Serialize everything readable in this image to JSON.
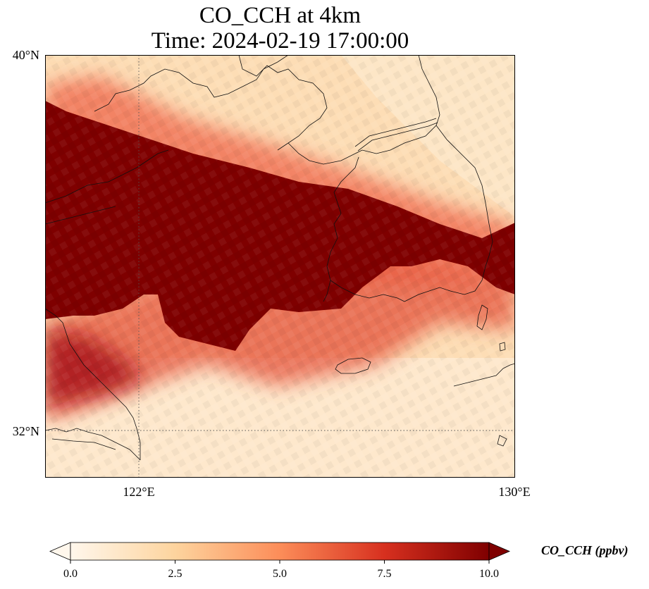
{
  "title": {
    "line1": "CO_CCH at 4km",
    "line2": "Time: 2024-02-19 17:00:00"
  },
  "map": {
    "variable": "CO_CCH",
    "level": "4km",
    "lat_range": [
      31,
      40
    ],
    "lon_range": [
      120,
      130
    ],
    "lat_ticks": [
      {
        "value": 40,
        "label": "40°N"
      },
      {
        "value": 32,
        "label": "32°N"
      }
    ],
    "lon_ticks": [
      {
        "value": 122,
        "label": "122°E"
      },
      {
        "value": 130,
        "label": "130°E"
      }
    ],
    "gridlines": "dotted",
    "plume_description_values": {
      "max_concentration_ppbv": 10,
      "background_ppbv": 2
    }
  },
  "colorbar": {
    "cmap": "OrRd",
    "min": 0,
    "max": 10,
    "extend": "both",
    "ticks": [
      "0.0",
      "2.5",
      "5.0",
      "7.5",
      "10.0"
    ],
    "tick_values": [
      0,
      2.5,
      5,
      7.5,
      10
    ],
    "label": "CO_CCH (ppbv)",
    "colors": [
      "#fff7ec",
      "#fdd49e",
      "#fc8d59",
      "#d7301f",
      "#7f0000"
    ]
  }
}
